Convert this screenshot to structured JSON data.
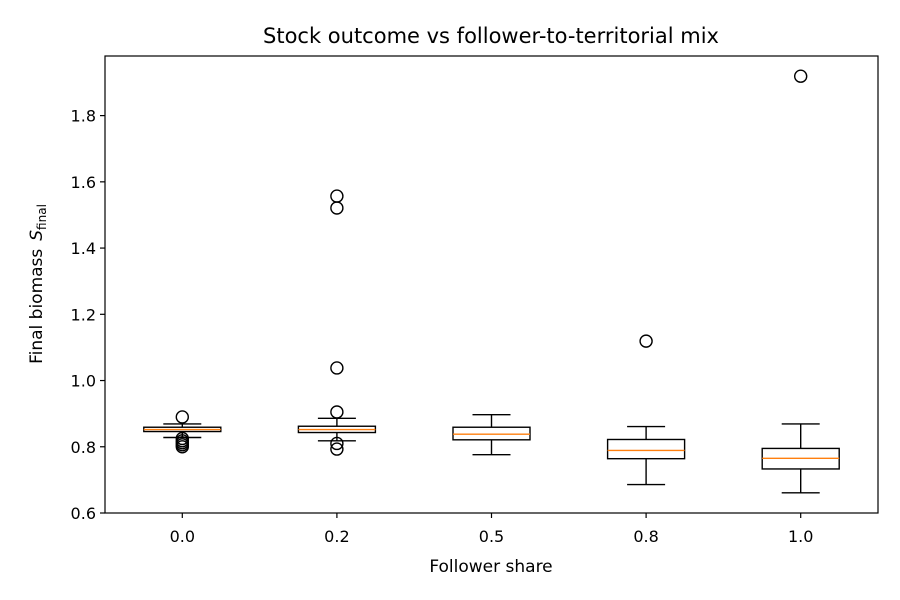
{
  "chart_data": {
    "type": "box",
    "title": "Stock outcome vs follower-to-territorial mix",
    "xlabel": "Follower share",
    "ylabel": {
      "main": "Final biomass",
      "symbol": "S",
      "subscript": "final"
    },
    "ylim": [
      0.6,
      1.98
    ],
    "yticks": [
      0.6,
      0.8,
      1.0,
      1.2,
      1.4,
      1.6,
      1.8
    ],
    "ytick_labels": [
      "0.6",
      "0.8",
      "1.0",
      "1.2",
      "1.4",
      "1.6",
      "1.8"
    ],
    "grid": false,
    "categories": [
      "0.0",
      "0.2",
      "0.5",
      "0.8",
      "1.0"
    ],
    "boxes": [
      {
        "category": "0.0",
        "whisker_low": 0.828,
        "q1": 0.846,
        "median": 0.852,
        "q3": 0.859,
        "whisker_high": 0.869,
        "outliers": [
          0.89,
          0.825,
          0.818,
          0.812,
          0.806,
          0.8
        ]
      },
      {
        "category": "0.2",
        "whisker_low": 0.818,
        "q1": 0.843,
        "median": 0.852,
        "q3": 0.862,
        "whisker_high": 0.886,
        "outliers": [
          1.557,
          1.521,
          1.038,
          0.905,
          0.81,
          0.793
        ]
      },
      {
        "category": "0.5",
        "whisker_low": 0.776,
        "q1": 0.821,
        "median": 0.838,
        "q3": 0.859,
        "whisker_high": 0.897,
        "outliers": []
      },
      {
        "category": "0.8",
        "whisker_low": 0.686,
        "q1": 0.764,
        "median": 0.789,
        "q3": 0.822,
        "whisker_high": 0.861,
        "outliers": [
          1.119
        ]
      },
      {
        "category": "1.0",
        "whisker_low": 0.661,
        "q1": 0.733,
        "median": 0.765,
        "q3": 0.795,
        "whisker_high": 0.869,
        "outliers": [
          1.919
        ]
      }
    ],
    "colors": {
      "box": "#000000",
      "median": "#ff7f0e",
      "outlier": "#000000",
      "background": "#ffffff"
    }
  }
}
